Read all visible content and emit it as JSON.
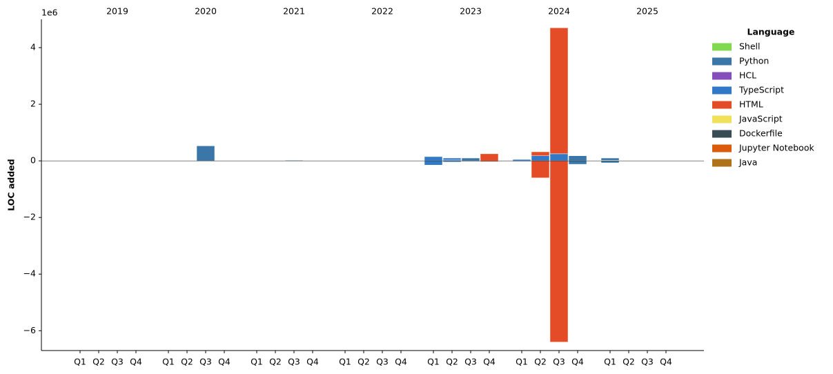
{
  "chart_data": {
    "type": "stacked_bar",
    "y_label": "LOC added",
    "y_offset_label": "1e6",
    "ylim": [
      -6.7,
      5.0
    ],
    "yticks": [
      {
        "value": -6,
        "label": "−6"
      },
      {
        "value": -4,
        "label": "−4"
      },
      {
        "value": -2,
        "label": "−2"
      },
      0,
      2,
      4
    ],
    "categories": [
      "Q1",
      "Q2",
      "Q3",
      "Q4",
      "Q1",
      "Q2",
      "Q3",
      "Q4",
      "Q1",
      "Q2",
      "Q3",
      "Q4",
      "Q1",
      "Q2",
      "Q3",
      "Q4",
      "Q1",
      "Q2",
      "Q3",
      "Q4",
      "Q1",
      "Q2",
      "Q3",
      "Q4",
      "Q1",
      "Q2",
      "Q3",
      "Q4"
    ],
    "years": [
      "2019",
      "2020",
      "2021",
      "2022",
      "2023",
      "2024",
      "2025"
    ],
    "legend_title": "Language",
    "series": [
      {
        "name": "Shell",
        "color": "#80d94f",
        "values": [
          null,
          null,
          null,
          null,
          null,
          null,
          null,
          null,
          null,
          null,
          null,
          null,
          null,
          null,
          null,
          null,
          null,
          null,
          null,
          null,
          null,
          null,
          null,
          null,
          0.02,
          null,
          null,
          null
        ],
        "removed": [
          null,
          null,
          null,
          null,
          null,
          null,
          null,
          null,
          null,
          null,
          null,
          null,
          null,
          null,
          null,
          null,
          null,
          null,
          null,
          null,
          null,
          null,
          null,
          null,
          null,
          null,
          null,
          null
        ]
      },
      {
        "name": "Python",
        "color": "#3a76a8",
        "values": [
          null,
          null,
          null,
          null,
          null,
          null,
          0.53,
          null,
          null,
          null,
          0.02,
          null,
          null,
          null,
          null,
          null,
          null,
          0.03,
          0.1,
          null,
          null,
          null,
          null,
          0.18,
          0.08,
          null,
          null,
          null
        ],
        "removed": [
          null,
          null,
          null,
          null,
          null,
          null,
          null,
          null,
          null,
          null,
          null,
          null,
          null,
          null,
          null,
          null,
          null,
          null,
          -0.02,
          null,
          null,
          null,
          null,
          -0.12,
          -0.07,
          null,
          null,
          null
        ]
      },
      {
        "name": "HCL",
        "color": "#844fba",
        "values": [
          null,
          null,
          null,
          null,
          null,
          null,
          null,
          null,
          null,
          null,
          null,
          null,
          null,
          null,
          null,
          null,
          null,
          null,
          null,
          null,
          null,
          null,
          null,
          null,
          null,
          null,
          null,
          null
        ],
        "removed": [
          null,
          null,
          null,
          null,
          null,
          null,
          null,
          null,
          null,
          null,
          null,
          null,
          null,
          null,
          null,
          null,
          null,
          null,
          null,
          null,
          null,
          null,
          null,
          null,
          null,
          null,
          null,
          null
        ]
      },
      {
        "name": "TypeScript",
        "color": "#3178c6",
        "values": [
          null,
          null,
          null,
          null,
          null,
          null,
          null,
          null,
          null,
          null,
          null,
          null,
          null,
          null,
          null,
          null,
          0.15,
          0.07,
          null,
          null,
          0.05,
          0.18,
          0.25,
          null,
          null,
          null,
          null,
          null
        ],
        "removed": [
          null,
          null,
          null,
          null,
          null,
          null,
          null,
          null,
          null,
          null,
          null,
          null,
          null,
          null,
          null,
          null,
          -0.15,
          -0.04,
          null,
          null,
          -0.02,
          null,
          null,
          null,
          null,
          null,
          null,
          null
        ]
      },
      {
        "name": "HTML",
        "color": "#e34c26",
        "values": [
          null,
          null,
          null,
          null,
          null,
          null,
          null,
          null,
          null,
          null,
          null,
          null,
          null,
          null,
          null,
          null,
          null,
          null,
          null,
          0.25,
          null,
          0.14,
          4.45,
          null,
          null,
          null,
          null,
          null
        ],
        "removed": [
          null,
          null,
          null,
          null,
          null,
          null,
          null,
          null,
          null,
          null,
          null,
          null,
          null,
          null,
          null,
          null,
          null,
          null,
          null,
          -0.03,
          null,
          -0.6,
          -6.4,
          null,
          null,
          null,
          null,
          null
        ]
      },
      {
        "name": "JavaScript",
        "color": "#f1e05a",
        "values": [
          null,
          null,
          null,
          null,
          null,
          null,
          null,
          null,
          null,
          null,
          null,
          null,
          null,
          null,
          null,
          null,
          null,
          null,
          null,
          null,
          null,
          null,
          null,
          null,
          null,
          null,
          null,
          null
        ],
        "removed": [
          null,
          null,
          null,
          null,
          null,
          null,
          null,
          null,
          null,
          null,
          null,
          null,
          null,
          null,
          null,
          null,
          null,
          null,
          null,
          null,
          null,
          null,
          null,
          null,
          null,
          null,
          null,
          null
        ]
      },
      {
        "name": "Dockerfile",
        "color": "#384d54",
        "values": [
          null,
          null,
          null,
          null,
          null,
          null,
          null,
          null,
          null,
          null,
          null,
          null,
          null,
          null,
          null,
          null,
          null,
          null,
          null,
          null,
          null,
          null,
          null,
          null,
          null,
          null,
          null,
          null
        ],
        "removed": [
          null,
          null,
          null,
          null,
          null,
          null,
          null,
          null,
          null,
          null,
          null,
          null,
          null,
          null,
          null,
          null,
          null,
          null,
          null,
          null,
          null,
          null,
          null,
          null,
          null,
          null,
          null,
          null
        ]
      },
      {
        "name": "Jupyter Notebook",
        "color": "#da5b0b",
        "values": [
          null,
          null,
          null,
          null,
          null,
          null,
          null,
          null,
          null,
          null,
          null,
          null,
          null,
          null,
          null,
          null,
          null,
          null,
          null,
          null,
          null,
          null,
          null,
          null,
          null,
          null,
          null,
          null
        ],
        "removed": [
          null,
          null,
          null,
          null,
          null,
          null,
          null,
          null,
          null,
          null,
          null,
          null,
          null,
          null,
          null,
          null,
          null,
          null,
          null,
          null,
          null,
          null,
          null,
          null,
          null,
          null,
          null,
          null
        ]
      },
      {
        "name": "Java",
        "color": "#b07219",
        "values": [
          null,
          null,
          null,
          null,
          null,
          null,
          null,
          null,
          null,
          null,
          null,
          null,
          null,
          null,
          null,
          null,
          null,
          null,
          null,
          null,
          null,
          null,
          null,
          null,
          null,
          null,
          null,
          null
        ],
        "removed": [
          null,
          null,
          null,
          null,
          null,
          null,
          null,
          null,
          null,
          null,
          null,
          null,
          null,
          null,
          null,
          null,
          null,
          null,
          null,
          null,
          null,
          null,
          null,
          null,
          null,
          null,
          null,
          null
        ]
      }
    ]
  }
}
